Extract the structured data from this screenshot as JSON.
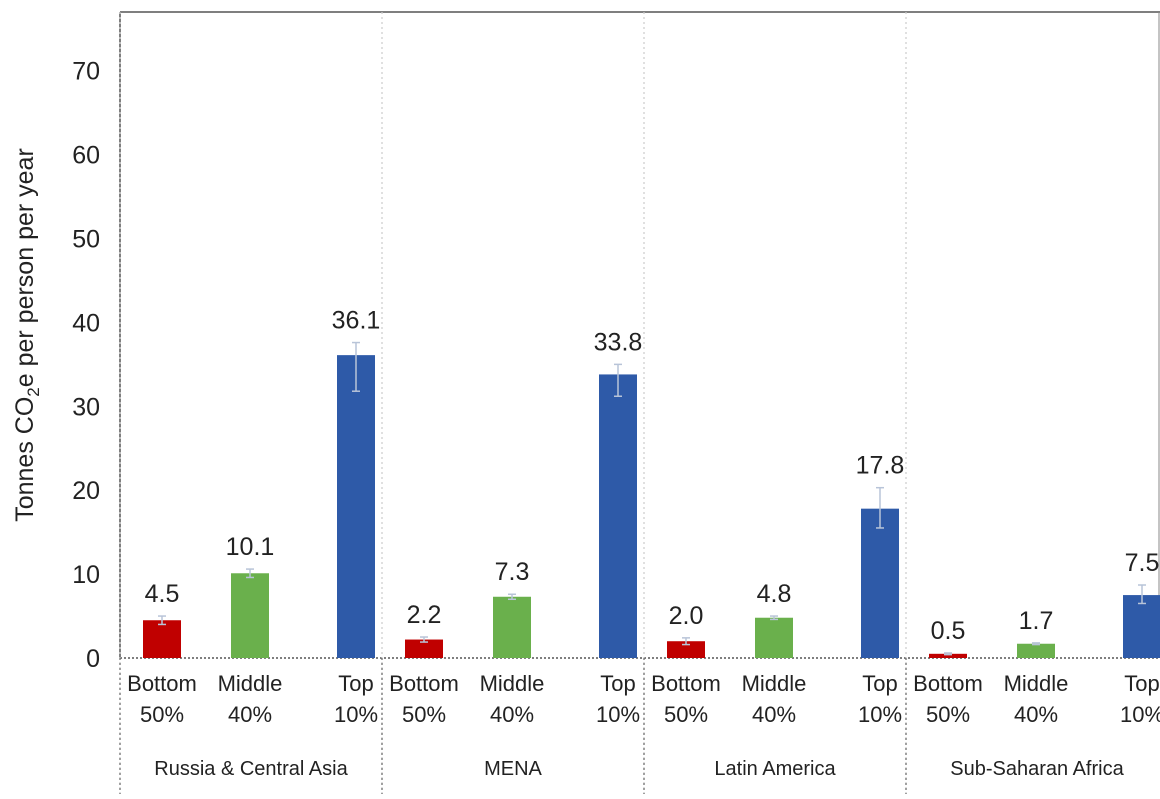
{
  "chart_data": {
    "type": "bar",
    "ylabel_parts": [
      "Tonnes CO",
      "2",
      "e per person per year"
    ],
    "ylim": [
      0,
      77
    ],
    "yticks": [
      0,
      10,
      20,
      30,
      40,
      50,
      60,
      70
    ],
    "grid": false,
    "legend": "none",
    "groups": [
      {
        "name": "Russia & Central Asia",
        "bars": [
          {
            "label_line1": "Bottom",
            "label_line2": "50%",
            "value": 4.5,
            "value_label": "4.5",
            "err_low": 4.0,
            "err_high": 5.0,
            "color": "#c00000"
          },
          {
            "label_line1": "Middle",
            "label_line2": "40%",
            "value": 10.1,
            "value_label": "10.1",
            "err_low": 9.6,
            "err_high": 10.6,
            "color": "#6ab04c"
          },
          {
            "label_line1": "Top",
            "label_line2": "10%",
            "value": 36.1,
            "value_label": "36.1",
            "err_low": 31.8,
            "err_high": 37.6,
            "color": "#2e5aa8"
          }
        ]
      },
      {
        "name": "MENA",
        "bars": [
          {
            "label_line1": "Bottom",
            "label_line2": "50%",
            "value": 2.2,
            "value_label": "2.2",
            "err_low": 1.9,
            "err_high": 2.5,
            "color": "#c00000"
          },
          {
            "label_line1": "Middle",
            "label_line2": "40%",
            "value": 7.3,
            "value_label": "7.3",
            "err_low": 7.0,
            "err_high": 7.6,
            "color": "#6ab04c"
          },
          {
            "label_line1": "Top",
            "label_line2": "10%",
            "value": 33.8,
            "value_label": "33.8",
            "err_low": 31.2,
            "err_high": 35.0,
            "color": "#2e5aa8"
          }
        ]
      },
      {
        "name": "Latin America",
        "bars": [
          {
            "label_line1": "Bottom",
            "label_line2": "50%",
            "value": 2.0,
            "value_label": "2.0",
            "err_low": 1.6,
            "err_high": 2.4,
            "color": "#c00000"
          },
          {
            "label_line1": "Middle",
            "label_line2": "40%",
            "value": 4.8,
            "value_label": "4.8",
            "err_low": 4.6,
            "err_high": 5.0,
            "color": "#6ab04c"
          },
          {
            "label_line1": "Top",
            "label_line2": "10%",
            "value": 17.8,
            "value_label": "17.8",
            "err_low": 15.5,
            "err_high": 20.3,
            "color": "#2e5aa8"
          }
        ]
      },
      {
        "name": "Sub-Saharan Africa",
        "bars": [
          {
            "label_line1": "Bottom",
            "label_line2": "50%",
            "value": 0.5,
            "value_label": "0.5",
            "err_low": 0.4,
            "err_high": 0.6,
            "color": "#c00000"
          },
          {
            "label_line1": "Middle",
            "label_line2": "40%",
            "value": 1.7,
            "value_label": "1.7",
            "err_low": 1.6,
            "err_high": 1.8,
            "color": "#6ab04c"
          },
          {
            "label_line1": "Top",
            "label_line2": "10%",
            "value": 7.5,
            "value_label": "7.5",
            "err_low": 6.5,
            "err_high": 8.7,
            "color": "#2e5aa8"
          }
        ]
      }
    ]
  }
}
